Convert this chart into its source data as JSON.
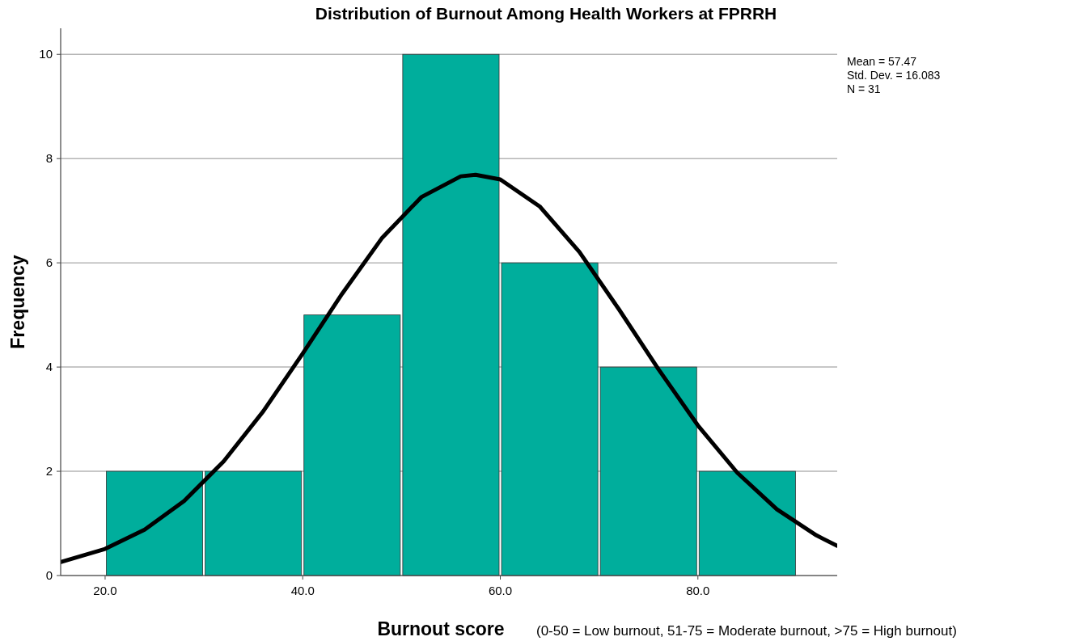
{
  "chart_data": {
    "type": "histogram",
    "title": "Distribution of Burnout Among Health Workers at FPRRH",
    "xlabel": "Burnout score",
    "ylabel": "Frequency",
    "bins": [
      20,
      30,
      40,
      50,
      60,
      70,
      80,
      90
    ],
    "values": [
      2,
      2,
      5,
      10,
      6,
      4,
      2
    ],
    "color": "#00ae9c",
    "series": [
      {
        "type": "line",
        "color": "#000000",
        "x": [
          15.5,
          20,
          24,
          28,
          32,
          36,
          40,
          44,
          48,
          52,
          56,
          57.5,
          60,
          64,
          68,
          72,
          76,
          80,
          84,
          88,
          92,
          94.1
        ],
        "values": [
          0.26,
          0.51,
          0.88,
          1.43,
          2.19,
          3.15,
          4.26,
          5.41,
          6.47,
          7.26,
          7.66,
          7.69,
          7.6,
          7.08,
          6.21,
          5.11,
          3.96,
          2.88,
          1.97,
          1.27,
          0.77,
          0.57
        ]
      }
    ],
    "xlim": [
      15.5,
      94.1
    ],
    "xticks": [
      {
        "value": 20,
        "label": "20.0"
      },
      {
        "value": 40,
        "label": "40.0"
      },
      {
        "value": 60,
        "label": "60.0"
      },
      {
        "value": 80,
        "label": "80.0"
      }
    ],
    "ylim": [
      0,
      10.5
    ],
    "yticks": [
      0,
      2,
      4,
      6,
      8,
      10
    ],
    "grid": "y",
    "annotations": [
      "Mean = 57.47",
      "Std. Dev. = 16.083",
      "N = 31",
      "(0-50 = Low burnout, 51-75 = Moderate burnout, >75 = High burnout)"
    ]
  }
}
